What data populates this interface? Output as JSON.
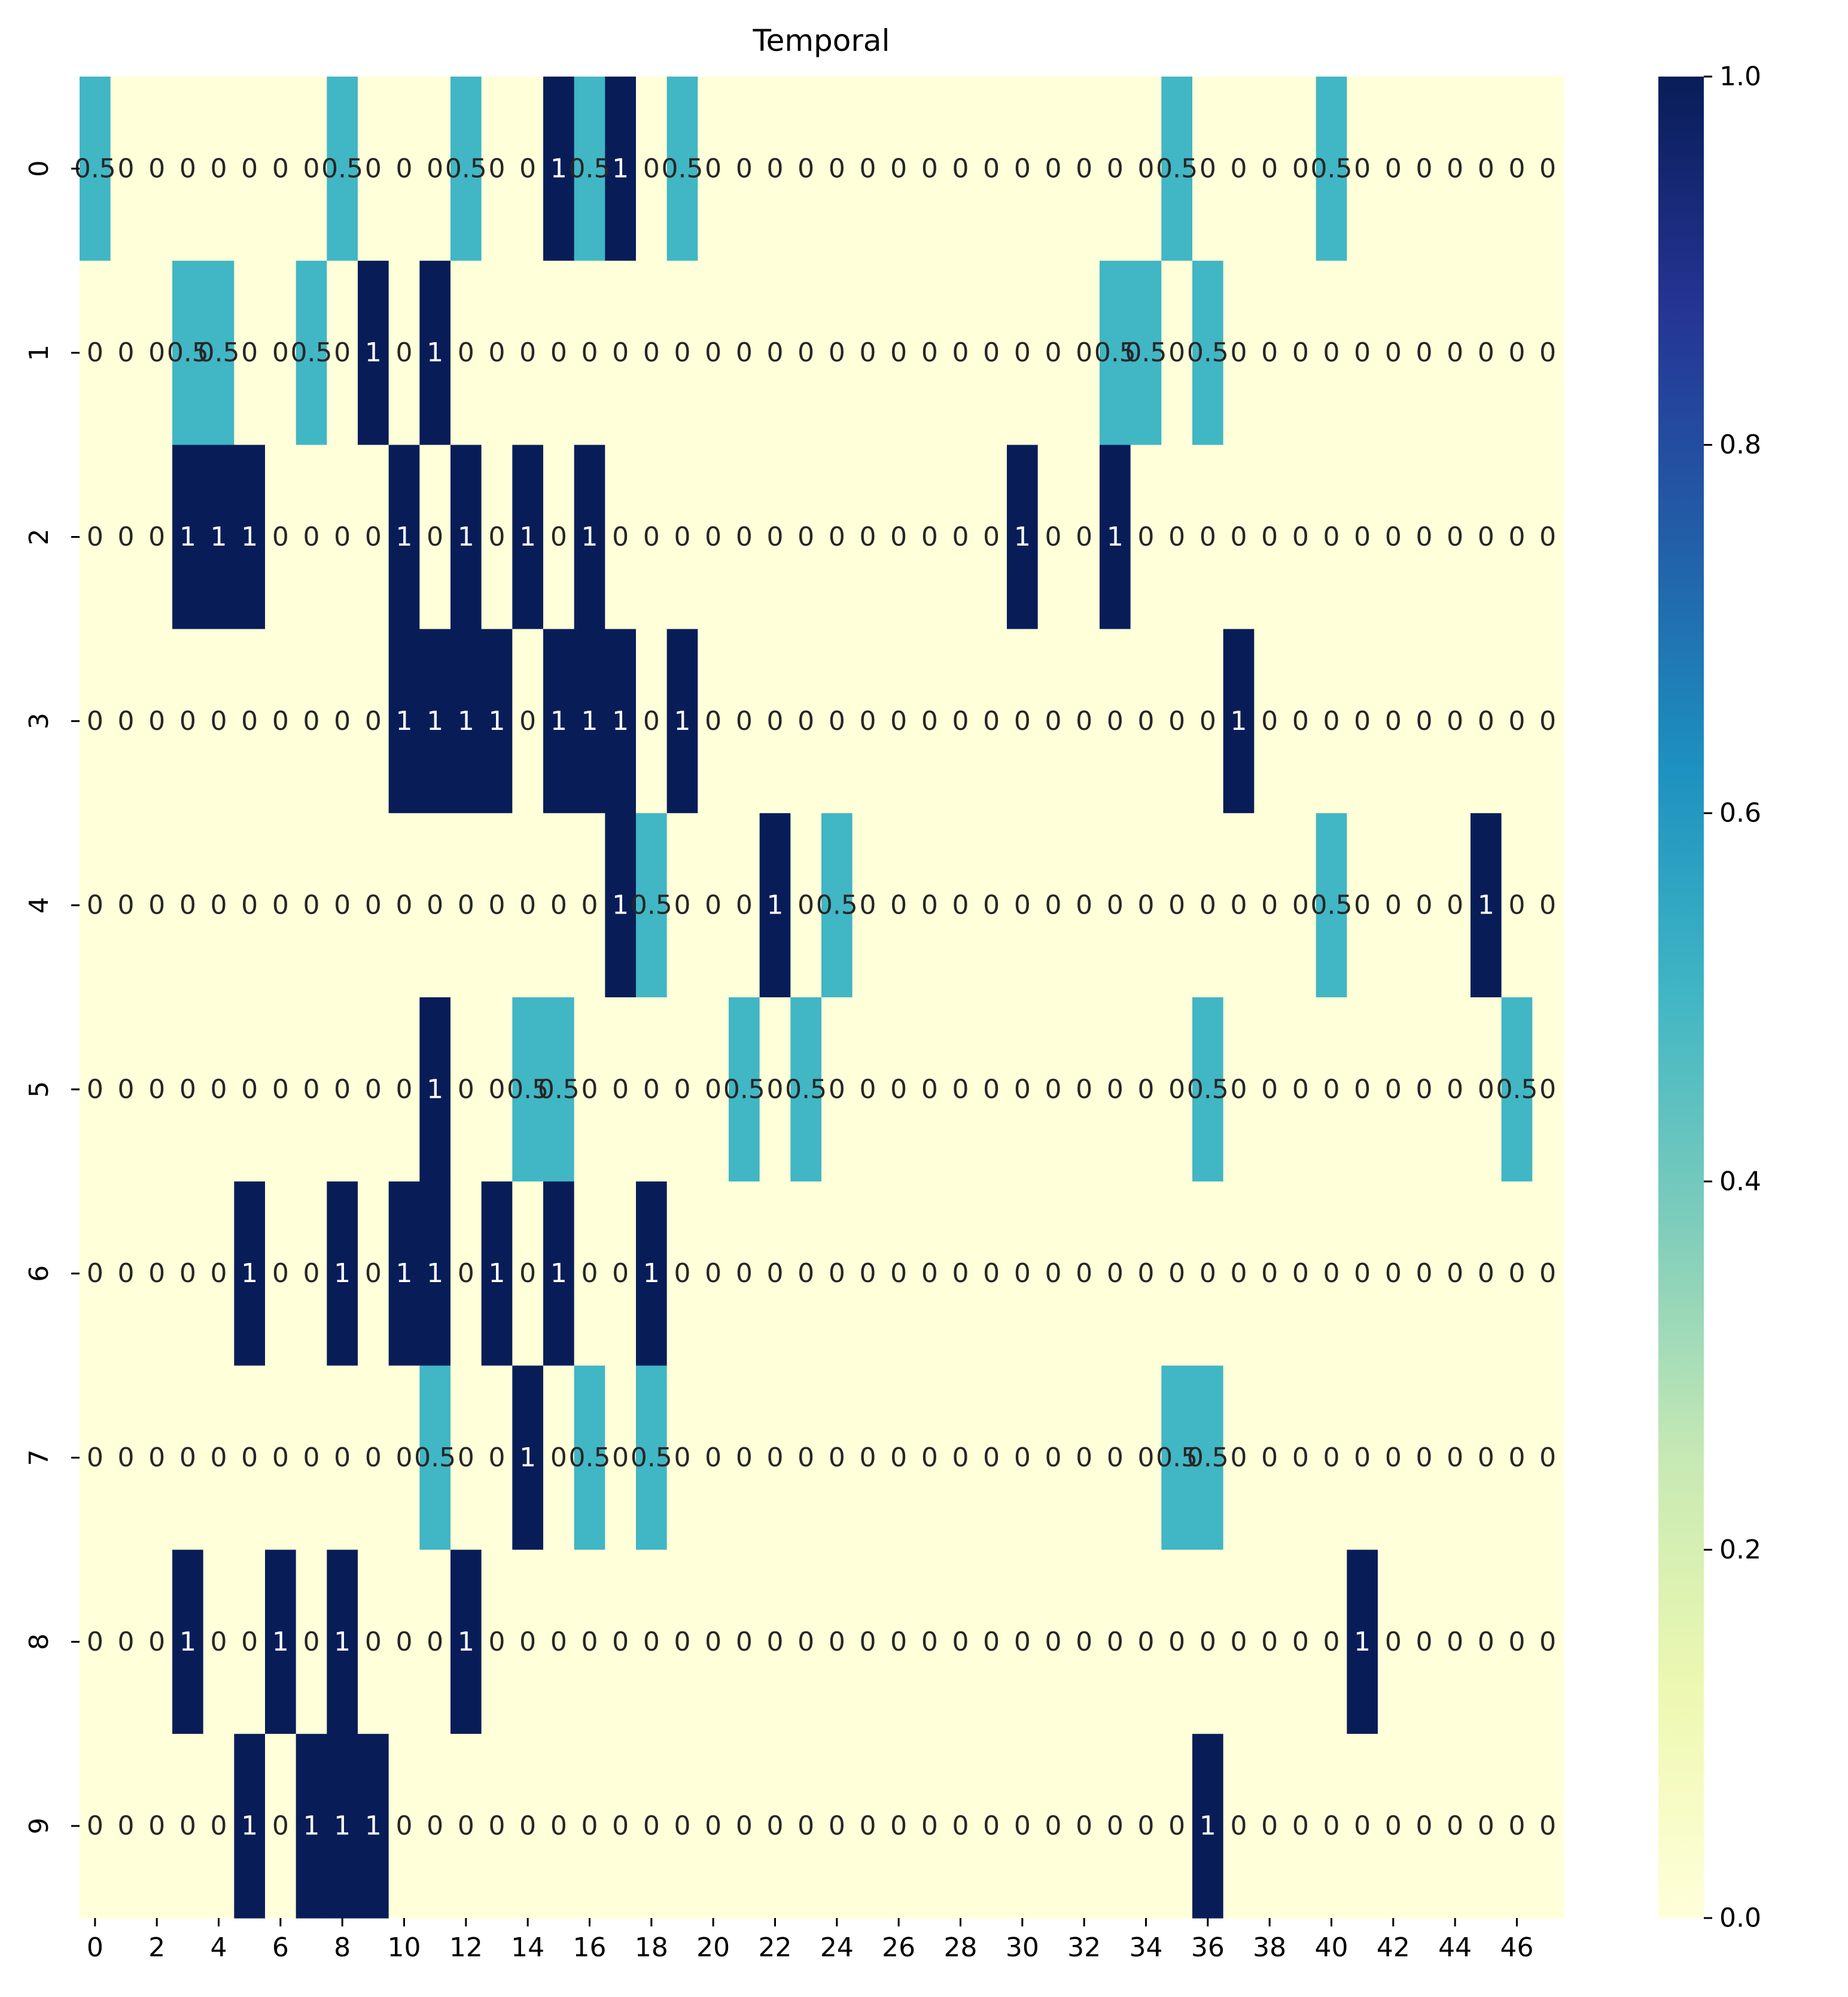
{
  "chart_data": {
    "type": "heatmap",
    "title": "Temporal",
    "xlabel": "",
    "ylabel": "",
    "x_tick_labels": [
      "0",
      "2",
      "4",
      "6",
      "8",
      "10",
      "12",
      "14",
      "16",
      "18",
      "20",
      "22",
      "24",
      "26",
      "28",
      "30",
      "32",
      "34",
      "36",
      "38",
      "40",
      "42",
      "44",
      "46"
    ],
    "y_tick_labels": [
      "0",
      "1",
      "2",
      "3",
      "4",
      "5",
      "6",
      "7",
      "8",
      "9"
    ],
    "colorbar": {
      "vmin": 0.0,
      "vmax": 1.0,
      "tick_labels": [
        "0.0",
        "0.2",
        "0.4",
        "0.6",
        "0.8",
        "1.0"
      ],
      "colormap": "YlGnBu"
    },
    "colors": {
      "low": "#ffffd9",
      "mid": "#41b6c4",
      "high": "#081d58"
    },
    "values": [
      [
        0.5,
        0,
        0,
        0,
        0,
        0,
        0,
        0,
        0.5,
        0,
        0,
        0,
        0.5,
        0,
        0,
        1,
        0.5,
        1,
        0,
        0.5,
        0,
        0,
        0,
        0,
        0,
        0,
        0,
        0,
        0,
        0,
        0,
        0,
        0,
        0,
        0,
        0.5,
        0,
        0,
        0,
        0,
        0.5,
        0,
        0,
        0,
        0,
        0,
        0,
        0
      ],
      [
        0,
        0,
        0,
        0.5,
        0.5,
        0,
        0,
        0.5,
        0,
        1,
        0,
        1,
        0,
        0,
        0,
        0,
        0,
        0,
        0,
        0,
        0,
        0,
        0,
        0,
        0,
        0,
        0,
        0,
        0,
        0,
        0,
        0,
        0,
        0.5,
        0.5,
        0,
        0.5,
        0,
        0,
        0,
        0,
        0,
        0,
        0,
        0,
        0,
        0,
        0
      ],
      [
        0,
        0,
        0,
        1,
        1,
        1,
        0,
        0,
        0,
        0,
        1,
        0,
        1,
        0,
        1,
        0,
        1,
        0,
        0,
        0,
        0,
        0,
        0,
        0,
        0,
        0,
        0,
        0,
        0,
        0,
        1,
        0,
        0,
        1,
        0,
        0,
        0,
        0,
        0,
        0,
        0,
        0,
        0,
        0,
        0,
        0,
        0,
        0
      ],
      [
        0,
        0,
        0,
        0,
        0,
        0,
        0,
        0,
        0,
        0,
        1,
        1,
        1,
        1,
        0,
        1,
        1,
        1,
        0,
        1,
        0,
        0,
        0,
        0,
        0,
        0,
        0,
        0,
        0,
        0,
        0,
        0,
        0,
        0,
        0,
        0,
        0,
        1,
        0,
        0,
        0,
        0,
        0,
        0,
        0,
        0,
        0,
        0
      ],
      [
        0,
        0,
        0,
        0,
        0,
        0,
        0,
        0,
        0,
        0,
        0,
        0,
        0,
        0,
        0,
        0,
        0,
        1,
        0.5,
        0,
        0,
        0,
        1,
        0,
        0.5,
        0,
        0,
        0,
        0,
        0,
        0,
        0,
        0,
        0,
        0,
        0,
        0,
        0,
        0,
        0,
        0.5,
        0,
        0,
        0,
        0,
        1,
        0,
        0
      ],
      [
        0,
        0,
        0,
        0,
        0,
        0,
        0,
        0,
        0,
        0,
        0,
        1,
        0,
        0,
        0.5,
        0.5,
        0,
        0,
        0,
        0,
        0,
        0.5,
        0,
        0.5,
        0,
        0,
        0,
        0,
        0,
        0,
        0,
        0,
        0,
        0,
        0,
        0,
        0.5,
        0,
        0,
        0,
        0,
        0,
        0,
        0,
        0,
        0,
        0.5,
        0
      ],
      [
        0,
        0,
        0,
        0,
        0,
        1,
        0,
        0,
        1,
        0,
        1,
        1,
        0,
        1,
        0,
        1,
        0,
        0,
        1,
        0,
        0,
        0,
        0,
        0,
        0,
        0,
        0,
        0,
        0,
        0,
        0,
        0,
        0,
        0,
        0,
        0,
        0,
        0,
        0,
        0,
        0,
        0,
        0,
        0,
        0,
        0,
        0,
        0
      ],
      [
        0,
        0,
        0,
        0,
        0,
        0,
        0,
        0,
        0,
        0,
        0,
        0.5,
        0,
        0,
        1,
        0,
        0.5,
        0,
        0.5,
        0,
        0,
        0,
        0,
        0,
        0,
        0,
        0,
        0,
        0,
        0,
        0,
        0,
        0,
        0,
        0,
        0.5,
        0.5,
        0,
        0,
        0,
        0,
        0,
        0,
        0,
        0,
        0,
        0,
        0
      ],
      [
        0,
        0,
        0,
        1,
        0,
        0,
        1,
        0,
        1,
        0,
        0,
        0,
        1,
        0,
        0,
        0,
        0,
        0,
        0,
        0,
        0,
        0,
        0,
        0,
        0,
        0,
        0,
        0,
        0,
        0,
        0,
        0,
        0,
        0,
        0,
        0,
        0,
        0,
        0,
        0,
        0,
        1,
        0,
        0,
        0,
        0,
        0,
        0
      ],
      [
        0,
        0,
        0,
        0,
        0,
        1,
        0,
        1,
        1,
        1,
        0,
        0,
        0,
        0,
        0,
        0,
        0,
        0,
        0,
        0,
        0,
        0,
        0,
        0,
        0,
        0,
        0,
        0,
        0,
        0,
        0,
        0,
        0,
        0,
        0,
        0,
        1,
        0,
        0,
        0,
        0,
        0,
        0,
        0,
        0,
        0,
        0,
        0
      ]
    ]
  }
}
